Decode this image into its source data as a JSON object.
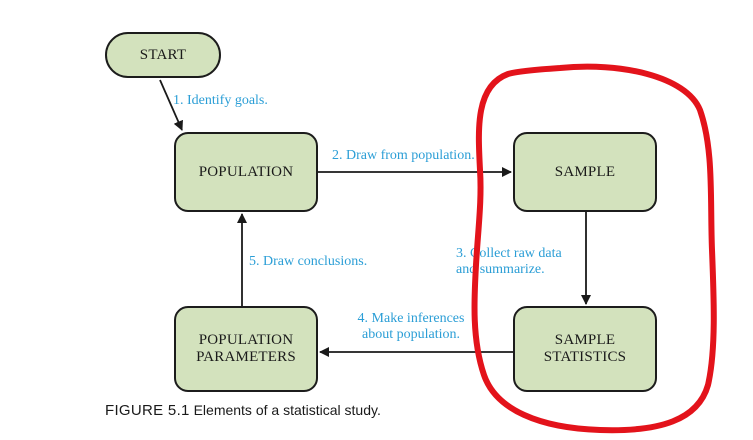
{
  "nodes": {
    "start": "START",
    "population": "POPULATION",
    "sample": "SAMPLE",
    "sample_statistics": "SAMPLE\nSTATISTICS",
    "population_parameters": "POPULATION\nPARAMETERS"
  },
  "steps": {
    "step1": "1. Identify goals.",
    "step2": "2. Draw from population.",
    "step3": "3. Collect raw data\n  and summarize.",
    "step4": "4. Make inferences\n   about population.",
    "step5": "5. Draw conclusions."
  },
  "caption": {
    "figure_number": "FIGURE 5.1",
    "text": "Elements of a statistical study."
  },
  "colors": {
    "box_fill": "#d3e2bd",
    "label_blue": "#2b9ed6",
    "annotation_red": "#e3131b"
  }
}
